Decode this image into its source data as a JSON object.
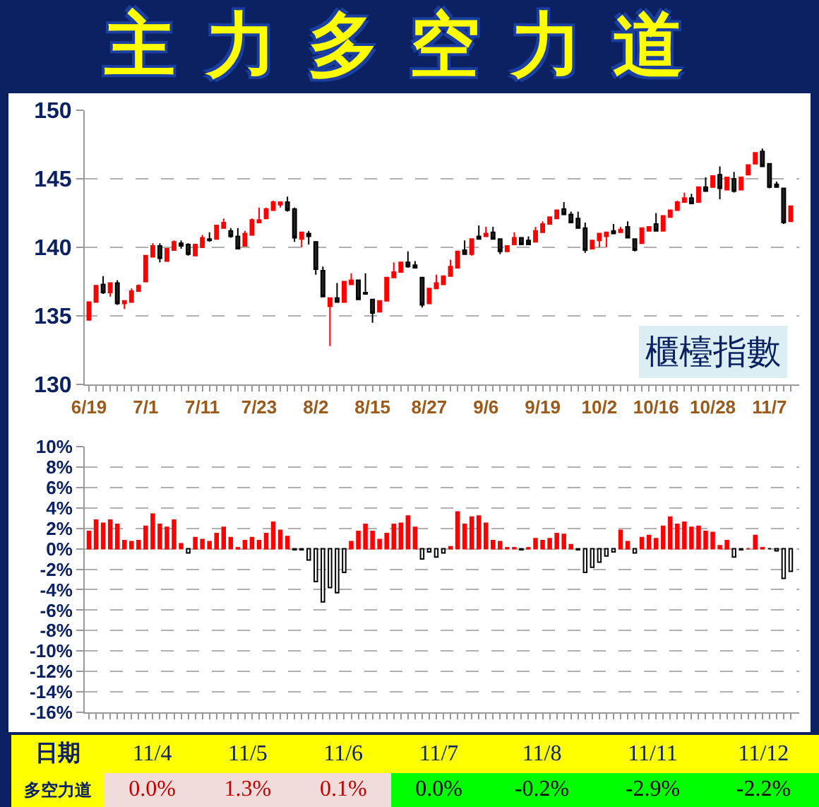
{
  "chart_data": [
    {
      "type": "candlestick",
      "title": "主力多空力道",
      "categories": [
        "6/19",
        null,
        null,
        null,
        null,
        null,
        null,
        null,
        "7/1",
        null,
        null,
        null,
        null,
        null,
        null,
        null,
        "7/11",
        null,
        null,
        null,
        null,
        null,
        null,
        null,
        "7/23",
        null,
        null,
        null,
        null,
        null,
        null,
        null,
        "8/2",
        null,
        null,
        null,
        null,
        null,
        null,
        null,
        "8/15",
        null,
        null,
        null,
        null,
        null,
        null,
        null,
        "8/27",
        null,
        null,
        null,
        null,
        null,
        null,
        null,
        "9/6",
        null,
        null,
        null,
        null,
        null,
        null,
        null,
        "9/19",
        null,
        null,
        null,
        null,
        null,
        null,
        null,
        "10/2",
        null,
        null,
        null,
        null,
        null,
        null,
        null,
        "10/16",
        null,
        null,
        null,
        null,
        null,
        null,
        null,
        "10/28",
        null,
        null,
        null,
        null,
        null,
        null,
        null,
        "11/7",
        null,
        null,
        null
      ],
      "ohlc": [
        [
          134.7,
          136.0,
          134.7,
          136.0
        ],
        [
          136.0,
          137.2,
          136.0,
          137.2
        ],
        [
          137.3,
          137.9,
          136.6,
          136.7
        ],
        [
          136.7,
          137.4,
          136.4,
          137.4
        ],
        [
          137.4,
          137.6,
          135.8,
          135.9
        ],
        [
          135.9,
          136.1,
          135.5,
          136.1
        ],
        [
          136.0,
          137.0,
          136.0,
          136.8
        ],
        [
          136.8,
          137.3,
          136.8,
          137.2
        ],
        [
          137.5,
          139.4,
          137.5,
          139.4
        ],
        [
          139.3,
          140.3,
          139.3,
          140.1
        ],
        [
          140.1,
          140.3,
          138.9,
          139.2
        ],
        [
          139.0,
          139.9,
          139.0,
          139.9
        ],
        [
          139.8,
          140.5,
          139.8,
          140.4
        ],
        [
          140.3,
          140.5,
          139.9,
          140.1
        ],
        [
          140.2,
          140.3,
          139.4,
          139.5
        ],
        [
          139.4,
          140.2,
          139.4,
          140.2
        ],
        [
          140.0,
          140.9,
          140.0,
          140.7
        ],
        [
          140.6,
          141.1,
          140.4,
          140.5
        ],
        [
          140.6,
          141.6,
          140.6,
          141.6
        ],
        [
          141.4,
          142.1,
          141.4,
          141.8
        ],
        [
          141.2,
          141.4,
          140.7,
          140.8
        ],
        [
          140.8,
          141.4,
          139.9,
          139.9
        ],
        [
          140.1,
          141.2,
          140.1,
          141.0
        ],
        [
          140.9,
          142.1,
          140.9,
          142.0
        ],
        [
          141.8,
          142.9,
          141.8,
          142.0
        ],
        [
          142.1,
          142.9,
          142.1,
          142.8
        ],
        [
          142.7,
          143.4,
          142.7,
          143.3
        ],
        [
          143.1,
          143.3,
          142.9,
          143.3
        ],
        [
          143.3,
          143.7,
          142.6,
          142.7
        ],
        [
          142.8,
          142.9,
          140.4,
          140.7
        ],
        [
          140.6,
          141.1,
          140.0,
          141.1
        ],
        [
          141.0,
          141.2,
          140.2,
          140.8
        ],
        [
          140.4,
          140.4,
          138.0,
          138.4
        ],
        [
          138.3,
          138.6,
          136.4,
          136.4
        ],
        [
          135.7,
          136.3,
          132.8,
          136.3
        ],
        [
          136.3,
          137.4,
          136.0,
          136.0
        ],
        [
          136.0,
          137.5,
          136.0,
          137.5
        ],
        [
          137.3,
          138.1,
          137.3,
          137.6
        ],
        [
          137.6,
          137.6,
          136.2,
          136.2
        ],
        [
          136.7,
          138.1,
          136.6,
          136.6
        ],
        [
          136.2,
          136.2,
          134.5,
          135.2
        ],
        [
          135.3,
          136.1,
          135.3,
          136.1
        ],
        [
          136.1,
          137.8,
          136.1,
          137.8
        ],
        [
          137.8,
          138.9,
          137.8,
          138.2
        ],
        [
          138.2,
          138.9,
          138.2,
          138.9
        ],
        [
          138.9,
          139.7,
          138.5,
          138.6
        ],
        [
          138.7,
          139.0,
          138.5,
          138.5
        ],
        [
          137.8,
          137.8,
          135.6,
          135.8
        ],
        [
          135.9,
          137.0,
          135.9,
          137.0
        ],
        [
          137.0,
          138.0,
          137.0,
          137.4
        ],
        [
          137.3,
          137.9,
          137.3,
          137.9
        ],
        [
          137.9,
          139.1,
          137.9,
          138.6
        ],
        [
          138.5,
          139.7,
          138.5,
          139.7
        ],
        [
          139.8,
          140.5,
          139.5,
          139.5
        ],
        [
          139.5,
          140.6,
          139.4,
          140.6
        ],
        [
          140.8,
          141.6,
          140.6,
          140.6
        ],
        [
          140.8,
          141.5,
          140.8,
          141.0
        ],
        [
          141.1,
          141.5,
          140.6,
          140.6
        ],
        [
          140.6,
          140.6,
          139.5,
          139.7
        ],
        [
          139.7,
          140.1,
          139.7,
          140.1
        ],
        [
          140.2,
          141.1,
          140.2,
          140.7
        ],
        [
          140.7,
          140.7,
          140.2,
          140.2
        ],
        [
          140.5,
          140.8,
          140.2,
          140.2
        ],
        [
          140.4,
          141.5,
          140.4,
          141.2
        ],
        [
          141.1,
          141.9,
          141.1,
          141.7
        ],
        [
          141.7,
          142.2,
          141.7,
          142.2
        ],
        [
          142.1,
          142.7,
          142.1,
          142.7
        ],
        [
          142.8,
          143.3,
          142.4,
          142.4
        ],
        [
          142.4,
          142.6,
          141.8,
          141.8
        ],
        [
          142.1,
          142.6,
          141.4,
          141.4
        ],
        [
          141.4,
          141.8,
          139.6,
          139.8
        ],
        [
          139.9,
          140.5,
          139.9,
          140.5
        ],
        [
          140.5,
          141.0,
          140.0,
          141.0
        ],
        [
          140.8,
          141.1,
          140.0,
          141.1
        ],
        [
          141.2,
          141.7,
          141.0,
          141.0
        ],
        [
          141.1,
          141.5,
          141.1,
          141.3
        ],
        [
          141.5,
          141.9,
          140.7,
          140.7
        ],
        [
          140.6,
          140.6,
          139.7,
          139.8
        ],
        [
          140.3,
          141.4,
          140.3,
          141.4
        ],
        [
          141.2,
          141.5,
          141.2,
          141.5
        ],
        [
          141.7,
          142.5,
          141.2,
          141.2
        ],
        [
          141.2,
          142.3,
          141.2,
          142.3
        ],
        [
          142.2,
          142.7,
          142.2,
          142.7
        ],
        [
          142.7,
          143.4,
          142.7,
          143.3
        ],
        [
          143.3,
          144.0,
          143.3,
          143.6
        ],
        [
          143.6,
          143.9,
          143.2,
          143.2
        ],
        [
          143.3,
          144.4,
          143.3,
          144.4
        ],
        [
          144.4,
          145.1,
          144.1,
          144.1
        ],
        [
          144.4,
          145.2,
          144.4,
          145.2
        ],
        [
          145.3,
          145.9,
          143.5,
          144.3
        ],
        [
          144.2,
          145.1,
          144.2,
          145.1
        ],
        [
          145.0,
          145.5,
          144.0,
          144.1
        ],
        [
          144.2,
          145.1,
          144.2,
          145.1
        ],
        [
          145.3,
          146.0,
          145.3,
          146.0
        ],
        [
          146.1,
          146.9,
          146.1,
          146.9
        ],
        [
          147.0,
          147.2,
          145.9,
          145.9
        ],
        [
          146.1,
          146.1,
          144.3,
          144.4
        ],
        [
          144.6,
          144.8,
          144.4,
          144.4
        ],
        [
          144.3,
          144.3,
          141.7,
          141.8
        ],
        [
          141.9,
          143.0,
          141.9,
          143.0
        ]
      ],
      "ylim": [
        130,
        150
      ],
      "yticks": [
        130,
        135,
        140,
        145,
        150
      ],
      "grid": "y",
      "annotations": [
        "櫃檯指數"
      ]
    },
    {
      "type": "bar",
      "categories": [
        null,
        null,
        null,
        null,
        null,
        null,
        null,
        null,
        null,
        null,
        null,
        null,
        null,
        null,
        null,
        null,
        null,
        null,
        null,
        null,
        null,
        null,
        null,
        null,
        null,
        null,
        null,
        null,
        null,
        null,
        null,
        null,
        null,
        null,
        null,
        null,
        null,
        null,
        null,
        null,
        null,
        null,
        null,
        null,
        null,
        null,
        null,
        null,
        null,
        null,
        null,
        null,
        null,
        null,
        null,
        null,
        null,
        null,
        null,
        null,
        null,
        null,
        null,
        null,
        null,
        null,
        null,
        null,
        null,
        null,
        null,
        null,
        null,
        null,
        null,
        null,
        null,
        null,
        null,
        null,
        null,
        null,
        null,
        null,
        null,
        null,
        null,
        null,
        null,
        null,
        null,
        null,
        null,
        null,
        null,
        null,
        null,
        null,
        null,
        null
      ],
      "values": [
        1.7,
        2.8,
        2.5,
        2.8,
        2.4,
        0.8,
        0.7,
        0.8,
        2.2,
        3.4,
        2.4,
        2.1,
        2.8,
        0.5,
        -0.4,
        1.1,
        0.9,
        0.7,
        1.5,
        2.1,
        1.1,
        0.1,
        0.8,
        1.1,
        0.8,
        1.5,
        2.6,
        1.8,
        1.2,
        -0.1,
        -0.1,
        -1.1,
        -3.2,
        -5.2,
        -3.8,
        -4.3,
        -2.3,
        0.7,
        1.7,
        2.4,
        1.7,
        0.9,
        1.5,
        2.4,
        2.5,
        3.2,
        2.1,
        -1.0,
        -0.3,
        -0.8,
        -0.4,
        0.2,
        3.6,
        2.4,
        3.1,
        3.2,
        2.5,
        0.8,
        0.7,
        0.1,
        0.1,
        -0.1,
        0.1,
        1.0,
        0.8,
        1.0,
        1.5,
        1.4,
        0.4,
        -0.1,
        -2.3,
        -1.8,
        -1.3,
        -0.7,
        -0.3,
        1.8,
        0.7,
        -0.4,
        1.1,
        1.3,
        1.0,
        2.2,
        3.1,
        2.4,
        2.6,
        2.1,
        2.2,
        1.7,
        1.6,
        0.3,
        0.8,
        -0.8,
        -0.1,
        0.0,
        1.3,
        0.1,
        0.0,
        -0.2,
        -2.9,
        -2.2
      ],
      "colors": [
        "#ff0000",
        "#ff0000",
        "#ff0000",
        "#ff0000",
        "#ff0000",
        "#ff0000",
        "#ff0000",
        "#ff0000",
        "#ff0000",
        "#ff0000",
        "#ff0000",
        "#ff0000",
        "#ff0000",
        "#ff0000",
        "#000000",
        "#ff0000",
        "#ff0000",
        "#ff0000",
        "#ff0000",
        "#ff0000",
        "#ff0000",
        "#ff0000",
        "#ff0000",
        "#ff0000",
        "#ff0000",
        "#ff0000",
        "#ff0000",
        "#ff0000",
        "#ff0000",
        "#000000",
        "#000000",
        "#000000",
        "#000000",
        "#000000",
        "#000000",
        "#000000",
        "#000000",
        "#ff0000",
        "#ff0000",
        "#ff0000",
        "#ff0000",
        "#ff0000",
        "#ff0000",
        "#ff0000",
        "#ff0000",
        "#ff0000",
        "#ff0000",
        "#000000",
        "#000000",
        "#000000",
        "#000000",
        "#ff0000",
        "#ff0000",
        "#ff0000",
        "#ff0000",
        "#ff0000",
        "#ff0000",
        "#ff0000",
        "#ff0000",
        "#ff0000",
        "#ff0000",
        "#000000",
        "#ff0000",
        "#ff0000",
        "#ff0000",
        "#ff0000",
        "#ff0000",
        "#ff0000",
        "#ff0000",
        "#000000",
        "#000000",
        "#000000",
        "#000000",
        "#000000",
        "#000000",
        "#ff0000",
        "#ff0000",
        "#000000",
        "#ff0000",
        "#ff0000",
        "#ff0000",
        "#ff0000",
        "#ff0000",
        "#ff0000",
        "#ff0000",
        "#ff0000",
        "#ff0000",
        "#ff0000",
        "#ff0000",
        "#ff0000",
        "#ff0000",
        "#000000",
        "#000000",
        "#ff0000",
        "#ff0000",
        "#ff0000",
        "#000000",
        "#000000",
        "#000000",
        "#000000"
      ],
      "ylim": [
        -16,
        10
      ],
      "yticks": [
        {
          "value": -16,
          "label": "-16%"
        },
        {
          "value": -14,
          "label": "-14%"
        },
        {
          "value": -12,
          "label": "-12%"
        },
        {
          "value": -10,
          "label": "-10%"
        },
        {
          "value": -8,
          "label": "-8%"
        },
        {
          "value": -6,
          "label": "-6%"
        },
        {
          "value": -4,
          "label": "-4%"
        },
        {
          "value": -2,
          "label": "-2%"
        },
        {
          "value": 0,
          "label": "0%"
        },
        {
          "value": 2,
          "label": "2%"
        },
        {
          "value": 4,
          "label": "4%"
        },
        {
          "value": 6,
          "label": "6%"
        },
        {
          "value": 8,
          "label": "8%"
        },
        {
          "value": 10,
          "label": "10%"
        }
      ],
      "grid": "y",
      "tick_labels": "y"
    },
    {
      "type": "other",
      "xlabel": "日期",
      "categories": [
        "11/4",
        "11/5",
        "11/6",
        "11/7",
        "11/8",
        "11/11",
        "11/12"
      ],
      "series": [
        {
          "name": "多空力道",
          "values": [
            0.0,
            1.3,
            0.1,
            0.0,
            -0.2,
            -2.9,
            -2.2
          ],
          "value_labels": [
            "0.0%",
            "1.3%",
            "0.1%",
            "0.0%",
            "-0.2%",
            "-2.9%",
            "-2.2%"
          ],
          "colors": [
            "#f2dcdb",
            "#f2dcdb",
            "#f2dcdb",
            "#00ff00",
            "#00ff00",
            "#00ff00",
            "#00ff00"
          ]
        }
      ]
    }
  ]
}
